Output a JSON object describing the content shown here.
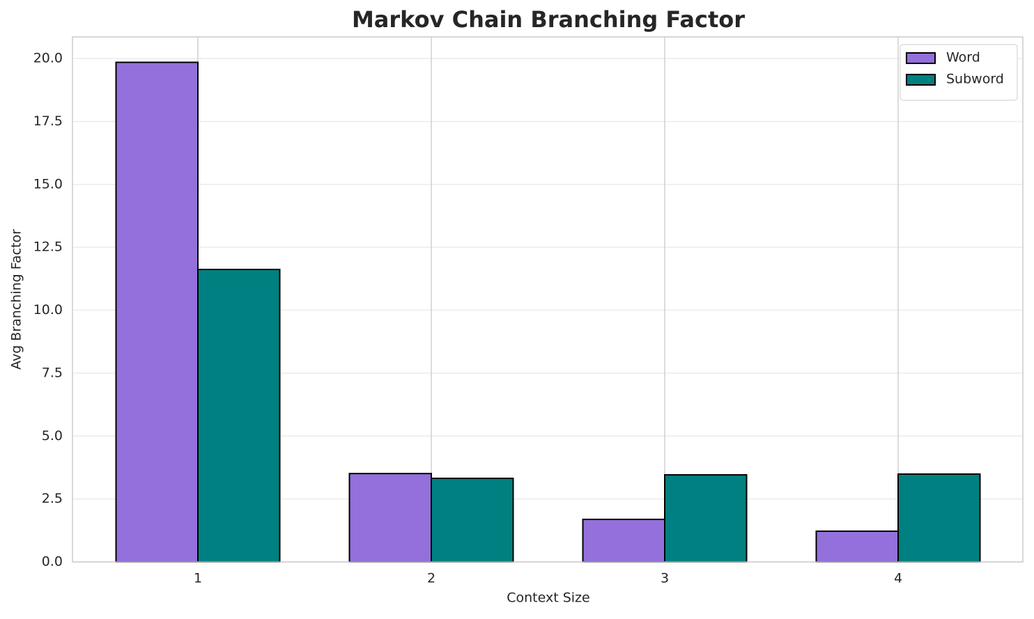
{
  "chart_data": {
    "type": "bar",
    "title": "Markov Chain Branching Factor",
    "x_label": "Context Size",
    "y_label": "Avg Branching Factor",
    "categories": [
      "1",
      "2",
      "3",
      "4"
    ],
    "series": [
      {
        "name": "Word",
        "color": "#9370db",
        "values": [
          19.85,
          3.51,
          1.69,
          1.22
        ]
      },
      {
        "name": "Subword",
        "color": "#008080",
        "values": [
          11.62,
          3.32,
          3.46,
          3.49
        ]
      }
    ],
    "ylim": [
      0,
      20.86
    ],
    "yticks": [
      {
        "value": 0,
        "label": "0.0"
      },
      2.5,
      {
        "value": 5,
        "label": "5.0"
      },
      7.5,
      {
        "value": 10,
        "label": "10.0"
      },
      12.5,
      {
        "value": 15,
        "label": "15.0"
      },
      17.5,
      {
        "value": 20,
        "label": "20.0"
      }
    ],
    "grid": true,
    "legend": "upper right"
  }
}
